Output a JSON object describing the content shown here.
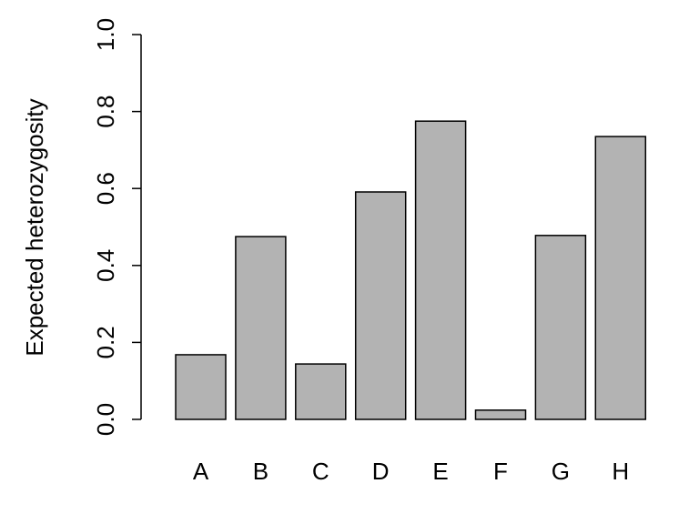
{
  "chart_data": {
    "type": "bar",
    "ylabel": "Expected heterozygosity",
    "categories": [
      "A",
      "B",
      "C",
      "D",
      "E",
      "F",
      "G",
      "H"
    ],
    "values": [
      0.168,
      0.475,
      0.144,
      0.591,
      0.775,
      0.024,
      0.478,
      0.735
    ],
    "color": "#b3b3b3",
    "ylim": [
      0,
      1
    ],
    "yticks": [
      {
        "value": 0,
        "label": "0.0"
      },
      0.2,
      0.4,
      0.6,
      0.8,
      {
        "value": 1,
        "label": "1.0"
      }
    ]
  }
}
